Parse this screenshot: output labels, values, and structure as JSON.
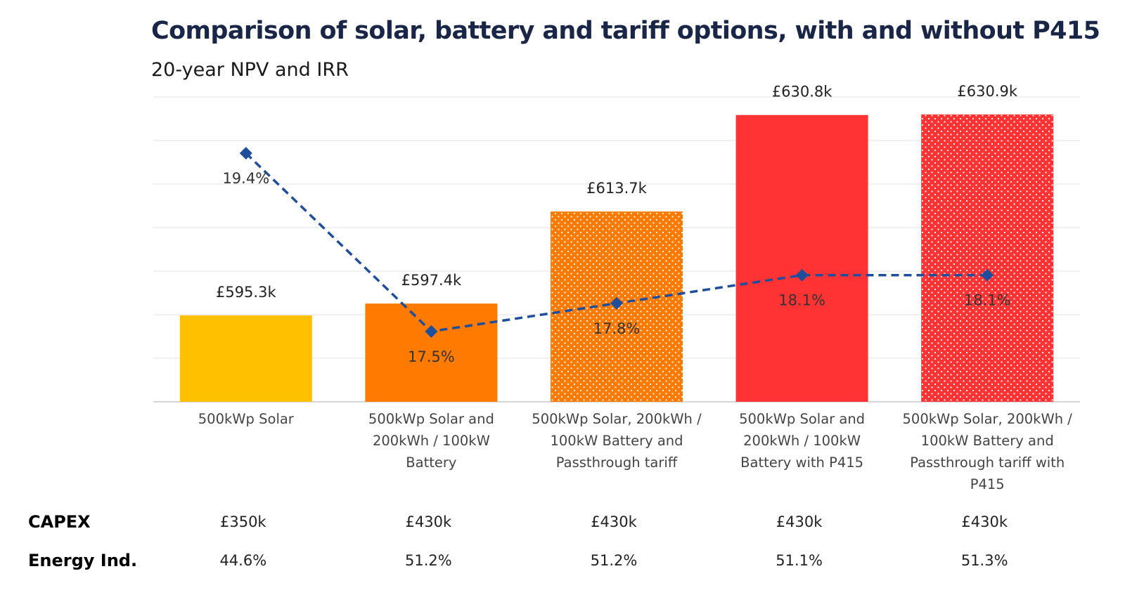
{
  "title": "Comparison of solar, battery and tariff options, with and without P415",
  "subtitle": "20-year NPV and IRR",
  "chart_data": {
    "type": "bar",
    "categories": [
      [
        "500kWp Solar"
      ],
      [
        "500kWp Solar and",
        "200kWh / 100kW",
        "Battery"
      ],
      [
        "500kWp Solar, 200kWh /",
        "100kW Battery and",
        "Passthrough tariff"
      ],
      [
        "500kWp Solar and",
        "200kWh / 100kW",
        "Battery with P415"
      ],
      [
        "500kWp Solar, 200kWh /",
        "100kW Battery and",
        "Passthrough tariff with",
        "P415"
      ]
    ],
    "series": [
      {
        "values": [
          595.3,
          597.4,
          613.7,
          630.8,
          630.9
        ],
        "labels": [
          "£595.3k",
          "£597.4k",
          "£613.7k",
          "£630.8k",
          "£630.9k"
        ],
        "colors": [
          "#FFC000",
          "#FF7A00",
          "#FF7A00",
          "#FF3333",
          "#FF3333"
        ],
        "patterned": [
          false,
          false,
          true,
          false,
          true
        ]
      },
      {
        "type": "line",
        "style": "dashed",
        "marker": "diamond",
        "color": "#1F4E9C",
        "values": [
          19.4,
          17.5,
          17.8,
          18.1,
          18.1
        ],
        "labels": [
          "19.4%",
          "17.5%",
          "17.8%",
          "18.1%",
          "18.1%"
        ]
      }
    ],
    "grid": true,
    "legend": "none"
  },
  "table": {
    "rows": [
      {
        "label": "CAPEX",
        "values": [
          "£350k",
          "£430k",
          "£430k",
          "£430k",
          "£430k"
        ]
      },
      {
        "label": "Energy Ind.",
        "values": [
          "44.6%",
          "51.2%",
          "51.2%",
          "51.1%",
          "51.3%"
        ]
      }
    ]
  }
}
